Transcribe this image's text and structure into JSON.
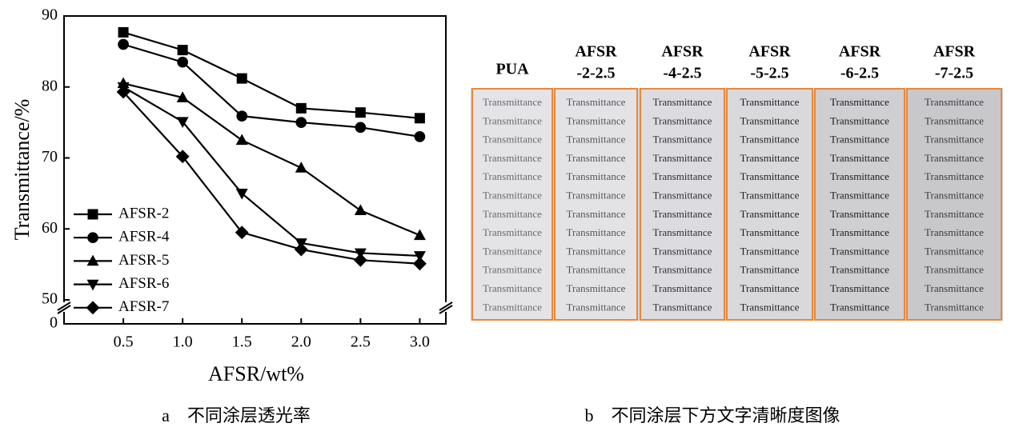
{
  "chart_data": {
    "type": "line",
    "caption": "a　不同涂层透光率",
    "x_label": "AFSR/wt%",
    "y_label": "Transmittance/%",
    "x": [
      0.5,
      1.0,
      1.5,
      2.0,
      2.5,
      3.0
    ],
    "xlim": [
      0,
      3.22
    ],
    "xticks": [
      0.5,
      {
        "value": 1,
        "label": "1.0"
      },
      1.5,
      {
        "value": 2,
        "label": "2.0"
      },
      2.5,
      {
        "value": 3,
        "label": "3.0"
      }
    ],
    "ylim": [
      50,
      90
    ],
    "y_break": true,
    "yticks": [
      0,
      50,
      60,
      70,
      80,
      90
    ],
    "legend": "lower left",
    "series": [
      {
        "name": "AFSR-2",
        "color": "#000000",
        "marker": "square",
        "values": [
          87.7,
          85.2,
          81.2,
          77.0,
          76.4,
          75.6
        ]
      },
      {
        "name": "AFSR-4",
        "color": "#000000",
        "marker": "circle",
        "values": [
          86.0,
          83.5,
          75.9,
          75.0,
          74.3,
          73.0
        ]
      },
      {
        "name": "AFSR-5",
        "color": "#000000",
        "marker": "triangle-up",
        "values": [
          80.5,
          78.5,
          72.5,
          68.6,
          62.6,
          59.1
        ]
      },
      {
        "name": "AFSR-6",
        "color": "#000000",
        "marker": "triangle-down",
        "values": [
          80.0,
          75.1,
          65.0,
          58.0,
          56.6,
          56.2
        ]
      },
      {
        "name": "AFSR-7",
        "color": "#000000",
        "marker": "diamond",
        "values": [
          79.3,
          70.2,
          59.5,
          57.1,
          55.6,
          55.1
        ]
      }
    ]
  },
  "panel_b": {
    "caption": "b　不同涂层下方文字清晰度图像",
    "columns": [
      {
        "header": [
          "PUA"
        ],
        "lines": [
          "Transmittance",
          "Transmittance",
          "Transmittance",
          "Transmittance",
          "Transmittance",
          "Transmittance",
          "Transmittance",
          "Transmittance",
          "Transmittance",
          "Transmittance",
          "Transmittance",
          "Transmittance"
        ]
      },
      {
        "header": [
          "AFSR",
          "-2-2.5"
        ],
        "lines": [
          "Transmittance",
          "Transmittance",
          "Transmittance",
          "Transmittance",
          "Transmittance",
          "Transmittance",
          "Transmittance",
          "Transmittance",
          "Transmittance",
          "Transmittance",
          "Transmittance",
          "Transmittance"
        ]
      },
      {
        "header": [
          "AFSR",
          "-4-2.5"
        ],
        "lines": [
          "Transmittance",
          "Transmittance",
          "Transmittance",
          "Transmittance",
          "Transmittance",
          "Transmittance",
          "Transmittance",
          "Transmittance",
          "Transmittance",
          "Transmittance",
          "Transmittance",
          "Transmittance"
        ]
      },
      {
        "header": [
          "AFSR",
          "-5-2.5"
        ],
        "lines": [
          "Transmittance",
          "Transmittance",
          "Transmittance",
          "Transmittance",
          "Transmittance",
          "Transmittance",
          "Transmittance",
          "Transmittance",
          "Transmittance",
          "Transmittance",
          "Transmittance",
          "Transmittance"
        ]
      },
      {
        "header": [
          "AFSR",
          "-6-2.5"
        ],
        "lines": [
          "Transmittance",
          "Transmittance",
          "Transmittance",
          "Transmittance",
          "Transmittance",
          "Transmittance",
          "Transmittance",
          "Transmittance",
          "Transmittance",
          "Transmittance",
          "Transmittance",
          "Transmittance"
        ]
      },
      {
        "header": [
          "AFSR",
          "-7-2.5"
        ],
        "lines": [
          "Transmittance",
          "Transmittance",
          "Transmittance",
          "Transmittance",
          "Transmittance",
          "Transmittance",
          "Transmittance",
          "Transmittance",
          "Transmittance",
          "Transmittance",
          "Transmittance",
          "Transmittance"
        ]
      }
    ]
  }
}
